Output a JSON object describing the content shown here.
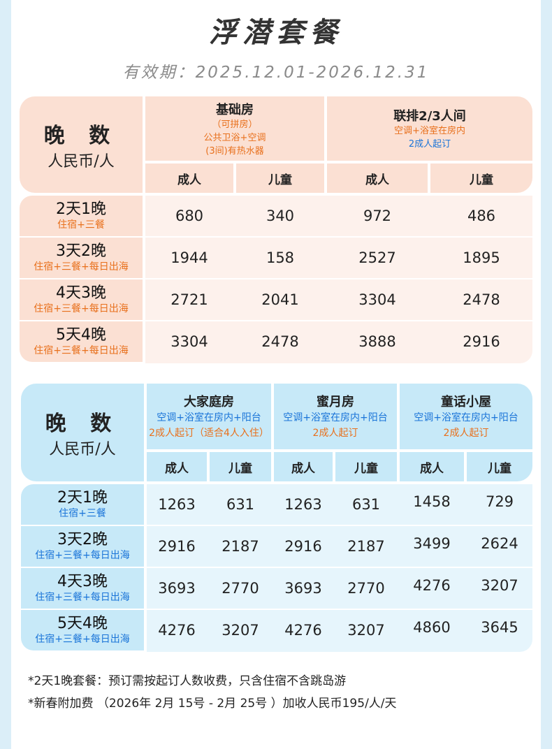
{
  "title": "浮潜套餐",
  "validity": "有效期：2025.12.01-2026.12.31",
  "table1": {
    "corner_main": "晚 数",
    "corner_sub": "人民币/人",
    "rooms": [
      {
        "name": "基础房",
        "subs": [
          "（可拼房）",
          "公共卫浴+空调",
          "(3间)有热水器"
        ]
      },
      {
        "name": "联排2/3人间",
        "subs_orange": "空调+浴室在房内",
        "subs_blue": "2成人起订"
      }
    ],
    "col_adult": "成人",
    "col_child": "儿童",
    "rows": [
      {
        "night": "2天1晚",
        "meal": "住宿+三餐",
        "values": [
          "680",
          "340",
          "972",
          "486"
        ]
      },
      {
        "night": "3天2晚",
        "meal": "住宿+三餐+每日出海",
        "values": [
          "1944",
          "158",
          "2527",
          "1895"
        ]
      },
      {
        "night": "4天3晚",
        "meal": "住宿+三餐+每日出海",
        "values": [
          "2721",
          "2041",
          "3304",
          "2478"
        ]
      },
      {
        "night": "5天4晚",
        "meal": "住宿+三餐+每日出海",
        "values": [
          "3304",
          "2478",
          "3888",
          "2916"
        ]
      }
    ]
  },
  "table2": {
    "corner_main": "晚 数",
    "corner_sub": "人民币/人",
    "rooms": [
      {
        "name": "大家庭房",
        "sub_blue": "空调+浴室在房内+阳台",
        "sub_orange": "2成人起订（适合4人入住）"
      },
      {
        "name": "蜜月房",
        "sub_blue": "空调+浴室在房内+阳台",
        "sub_orange": "2成人起订"
      },
      {
        "name": "童话小屋",
        "sub_blue": "空调+浴室在房内+阳台",
        "sub_orange": "2成人起订"
      }
    ],
    "col_adult": "成人",
    "col_child": "儿童",
    "rows": [
      {
        "night": "2天1晚",
        "meal": "住宿+三餐",
        "values": [
          "1263",
          "631",
          "1263",
          "631",
          "1458",
          "729"
        ]
      },
      {
        "night": "3天2晚",
        "meal": "住宿+三餐+每日出海",
        "values": [
          "2916",
          "2187",
          "2916",
          "2187",
          "3499",
          "2624"
        ]
      },
      {
        "night": "4天3晚",
        "meal": "住宿+三餐+每日出海",
        "values": [
          "3693",
          "2770",
          "3693",
          "2770",
          "4276",
          "3207"
        ]
      },
      {
        "night": "5天4晚",
        "meal": "住宿+三餐+每日出海",
        "values": [
          "4276",
          "3207",
          "4276",
          "3207",
          "4860",
          "3645"
        ]
      }
    ]
  },
  "notes": [
    "*2天1晚套餐：预订需按起订人数收费，只含住宿不含跳岛游",
    "*新春附加费 （2026年 2月 15号 - 2月 25号 ）加收人民币195/人/天"
  ],
  "colors": {
    "peach_header": "#fbe0d3",
    "peach_body": "#fdf1ec",
    "blue_header": "#c7e9f8",
    "blue_body": "#e6f5fc",
    "orange_text": "#e8701c",
    "blue_text": "#1a74d8"
  }
}
